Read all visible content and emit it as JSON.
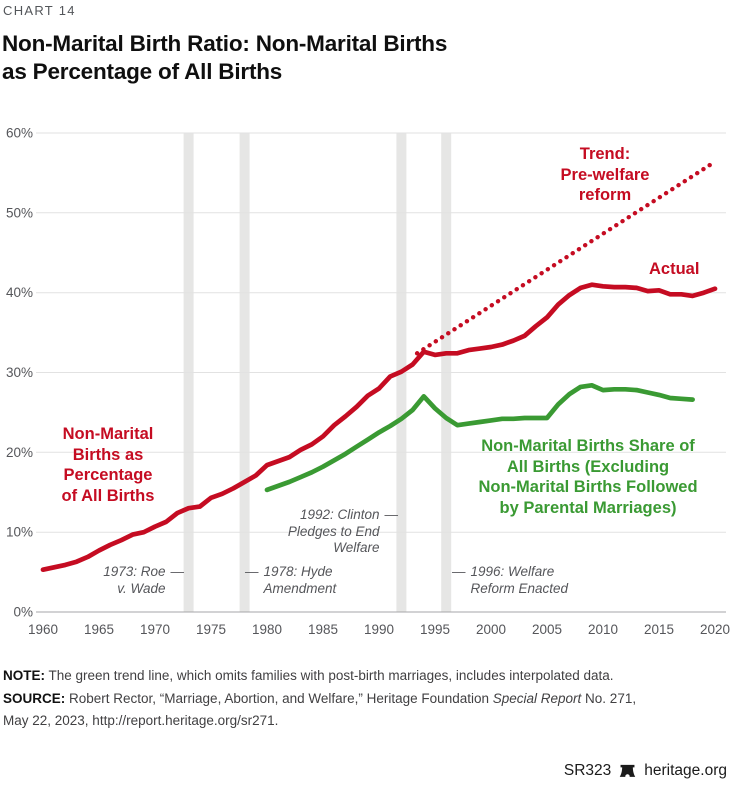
{
  "header": {
    "kicker": "CHART 14",
    "title": "Non-Marital Birth Ratio: Non-Marital Births\nas Percentage of All Births"
  },
  "chart_data": {
    "type": "line",
    "title": "Non-Marital Birth Ratio: Non-Marital Births as Percentage of All Births",
    "xlabel": "",
    "ylabel": "",
    "x_axis": {
      "range": [
        1960,
        2020
      ],
      "ticks": [
        1960,
        1965,
        1970,
        1975,
        1980,
        1985,
        1990,
        1995,
        2000,
        2005,
        2010,
        2015,
        2020
      ]
    },
    "y_axis": {
      "range": [
        0,
        60
      ],
      "unit": "%",
      "tick_values": [
        0,
        10,
        20,
        30,
        40,
        50,
        60
      ],
      "tick_labels": [
        "0%",
        "10%",
        "20%",
        "30%",
        "40%",
        "50%",
        "60%"
      ]
    },
    "grid": "horizontal",
    "colors": {
      "red": "#c50c22",
      "green": "#3a9a33",
      "band_gray": "#e6e6e5",
      "gridline": "#e2e2e2",
      "zero_line": "#a6a6a8",
      "tick_text": "#55565a"
    },
    "event_band_years": [
      1973,
      1978,
      1992,
      1996
    ],
    "series": [
      {
        "id": "trend",
        "name": "Trend: Pre-welfare reform",
        "style": "dotted",
        "color": "#c50c22",
        "x": [
          1993.4,
          2020
        ],
        "values": [
          32.4,
          56.4
        ]
      },
      {
        "id": "green",
        "name": "Non-Marital Births Share of All Births (Excluding Non-Marital Births Followed by Parental Marriages)",
        "style": "solid",
        "color": "#3a9a33",
        "x_start": 1980,
        "x_step": 1,
        "values": [
          15.3,
          15.8,
          16.3,
          16.9,
          17.5,
          18.2,
          19.0,
          19.8,
          20.7,
          21.6,
          22.5,
          23.3,
          24.2,
          25.3,
          27.0,
          25.5,
          24.3,
          23.4,
          23.6,
          23.8,
          24.0,
          24.2,
          24.2,
          24.3,
          24.3,
          24.3,
          26.0,
          27.3,
          28.2,
          28.4,
          27.8,
          27.9,
          27.9,
          27.8,
          27.5,
          27.2,
          26.8,
          26.7,
          26.6
        ]
      },
      {
        "id": "actual",
        "name": "Actual",
        "style": "solid",
        "color": "#c50c22",
        "x_start": 1960,
        "x_step": 1,
        "values": [
          5.3,
          5.6,
          5.9,
          6.3,
          6.9,
          7.7,
          8.4,
          9.0,
          9.7,
          10.0,
          10.7,
          11.3,
          12.4,
          13.0,
          13.2,
          14.3,
          14.8,
          15.5,
          16.3,
          17.1,
          18.4,
          18.9,
          19.4,
          20.3,
          21.0,
          22.0,
          23.4,
          24.5,
          25.7,
          27.1,
          28.0,
          29.5,
          30.1,
          31.0,
          32.6,
          32.2,
          32.4,
          32.4,
          32.8,
          33.0,
          33.2,
          33.5,
          34.0,
          34.6,
          35.8,
          36.9,
          38.5,
          39.7,
          40.6,
          41.0,
          40.8,
          40.7,
          40.7,
          40.6,
          40.2,
          40.3,
          39.8,
          39.8,
          39.6,
          40.0,
          40.5
        ]
      }
    ],
    "labels": {
      "trend": "Trend:\nPre-welfare\nreform",
      "actual": "Actual",
      "red_series": "Non-Marital\nBirths as\nPercentage\nof All Births",
      "green_series": "Non-Marital Births Share of\nAll Births (Excluding\nNon-Marital Births Followed\nby Parental Marriages)"
    },
    "annotations": {
      "roe": {
        "dash": "—",
        "lines": "1973: Roe\nv. Wade"
      },
      "hyde": {
        "dash": "—",
        "lines": "1978: Hyde\nAmendment"
      },
      "clinton": {
        "dash": "—",
        "lines": "1992: Clinton\nPledges to End\nWelfare"
      },
      "welfare96": {
        "dash": "—",
        "lines": "1996: Welfare\nReform Enacted"
      }
    }
  },
  "footer": {
    "note_label": "NOTE:",
    "note_text": " The green trend line, which omits families with post-birth marriages, includes interpolated data.",
    "source_label": "SOURCE:",
    "source_pre_italic": " Robert Rector, “Marriage, Abortion, and Welfare,” Heritage Foundation ",
    "source_italic": "Special Report",
    "source_post_italic": " No. 271,",
    "source_line2": "May 22, 2023, http://report.heritage.org/sr271.",
    "report_id": "SR323",
    "site": "heritage.org"
  }
}
